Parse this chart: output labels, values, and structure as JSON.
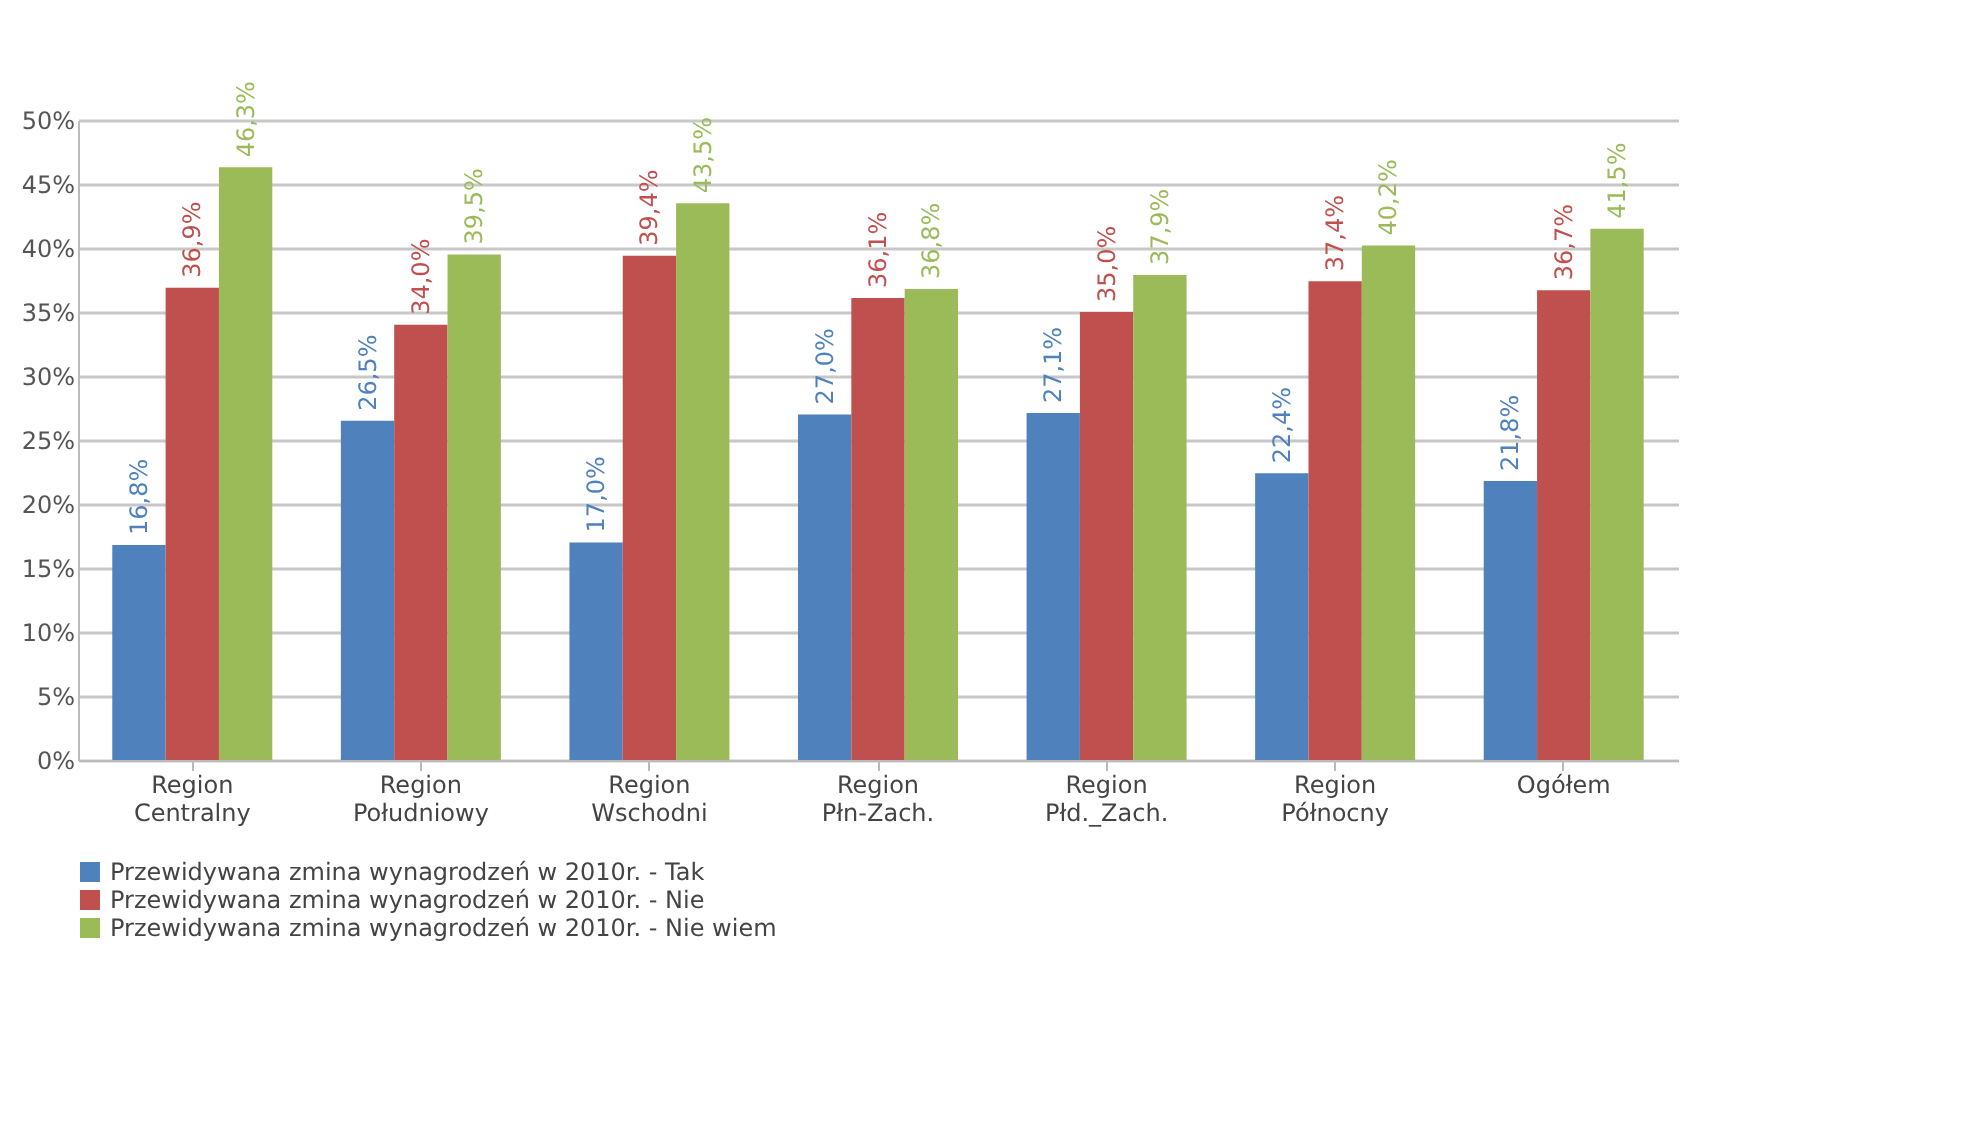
{
  "chart_data": {
    "type": "bar",
    "categories": [
      "Region Centralny",
      "Region Południowy",
      "Region Wschodni",
      "Region Płn-Zach.",
      "Region Płd._Zach.",
      "Region Północny",
      "Ogółem"
    ],
    "series": [
      {
        "name": "Przewidywana zmina wynagrodzeń w 2010r. -  Tak",
        "color": "#4f81bd",
        "values": [
          16.8,
          26.5,
          17.0,
          27.0,
          27.1,
          22.4,
          21.8
        ],
        "value_labels": [
          "16,8%",
          "26,5%",
          "17,0%",
          "27,0%",
          "27,1%",
          "22,4%",
          "21,8%"
        ]
      },
      {
        "name": "Przewidywana zmina wynagrodzeń w 2010r. -  Nie",
        "color": "#c0504d",
        "values": [
          36.9,
          34.0,
          39.4,
          36.1,
          35.0,
          37.4,
          36.7
        ],
        "value_labels": [
          "36,9%",
          "34,0%",
          "39,4%",
          "36,1%",
          "35,0%",
          "37,4%",
          "36,7%"
        ]
      },
      {
        "name": "Przewidywana zmina wynagrodzeń w 2010r. -  Nie wiem",
        "color": "#9bbb59",
        "values": [
          46.3,
          39.5,
          43.5,
          36.8,
          37.9,
          40.2,
          41.5
        ],
        "value_labels": [
          "46,3%",
          "39,5%",
          "43,5%",
          "36,8%",
          "37,9%",
          "40,2%",
          "41,5%"
        ]
      }
    ],
    "ylim": [
      0,
      50
    ],
    "yticks": [
      {
        "value": 0,
        "label": "0%"
      },
      {
        "value": 5,
        "label": "5%"
      },
      {
        "value": 10,
        "label": "10%"
      },
      {
        "value": 15,
        "label": "15%"
      },
      {
        "value": 20,
        "label": "20%"
      },
      {
        "value": 25,
        "label": "25%"
      },
      {
        "value": 30,
        "label": "30%"
      },
      {
        "value": 35,
        "label": "35%"
      },
      {
        "value": 40,
        "label": "40%"
      },
      {
        "value": 45,
        "label": "45%"
      },
      {
        "value": 50,
        "label": "50%"
      }
    ],
    "grid": "y",
    "legend": "bottom"
  }
}
